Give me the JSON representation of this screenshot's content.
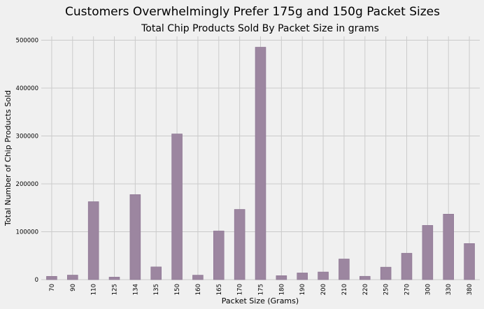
{
  "chart_data": {
    "type": "bar",
    "suptitle": "Customers Overwhelmingly Prefer 175g and 150g Packet Sizes",
    "title": "Total Chip Products Sold By Packet Size in grams",
    "xlabel": "Packet Size (Grams)",
    "ylabel": "Total Number of Chip Products Sold",
    "categories": [
      "70",
      "90",
      "110",
      "125",
      "134",
      "135",
      "150",
      "160",
      "165",
      "170",
      "175",
      "180",
      "190",
      "200",
      "210",
      "220",
      "250",
      "270",
      "300",
      "330",
      "380"
    ],
    "values": [
      6900,
      9500,
      162800,
      5300,
      177600,
      26600,
      304300,
      9400,
      101600,
      146700,
      485400,
      8300,
      14000,
      16000,
      43100,
      7000,
      26100,
      55200,
      113300,
      136800,
      75400
    ],
    "ylim": [
      0,
      508000
    ],
    "yticks": [
      0,
      100000,
      200000,
      300000,
      400000,
      500000
    ],
    "grid": true,
    "bar_color": "#9c86a0",
    "bar_edge_color": "#8a7290",
    "grid_color": "#cbcbcb",
    "background": "#f0f0f0"
  }
}
